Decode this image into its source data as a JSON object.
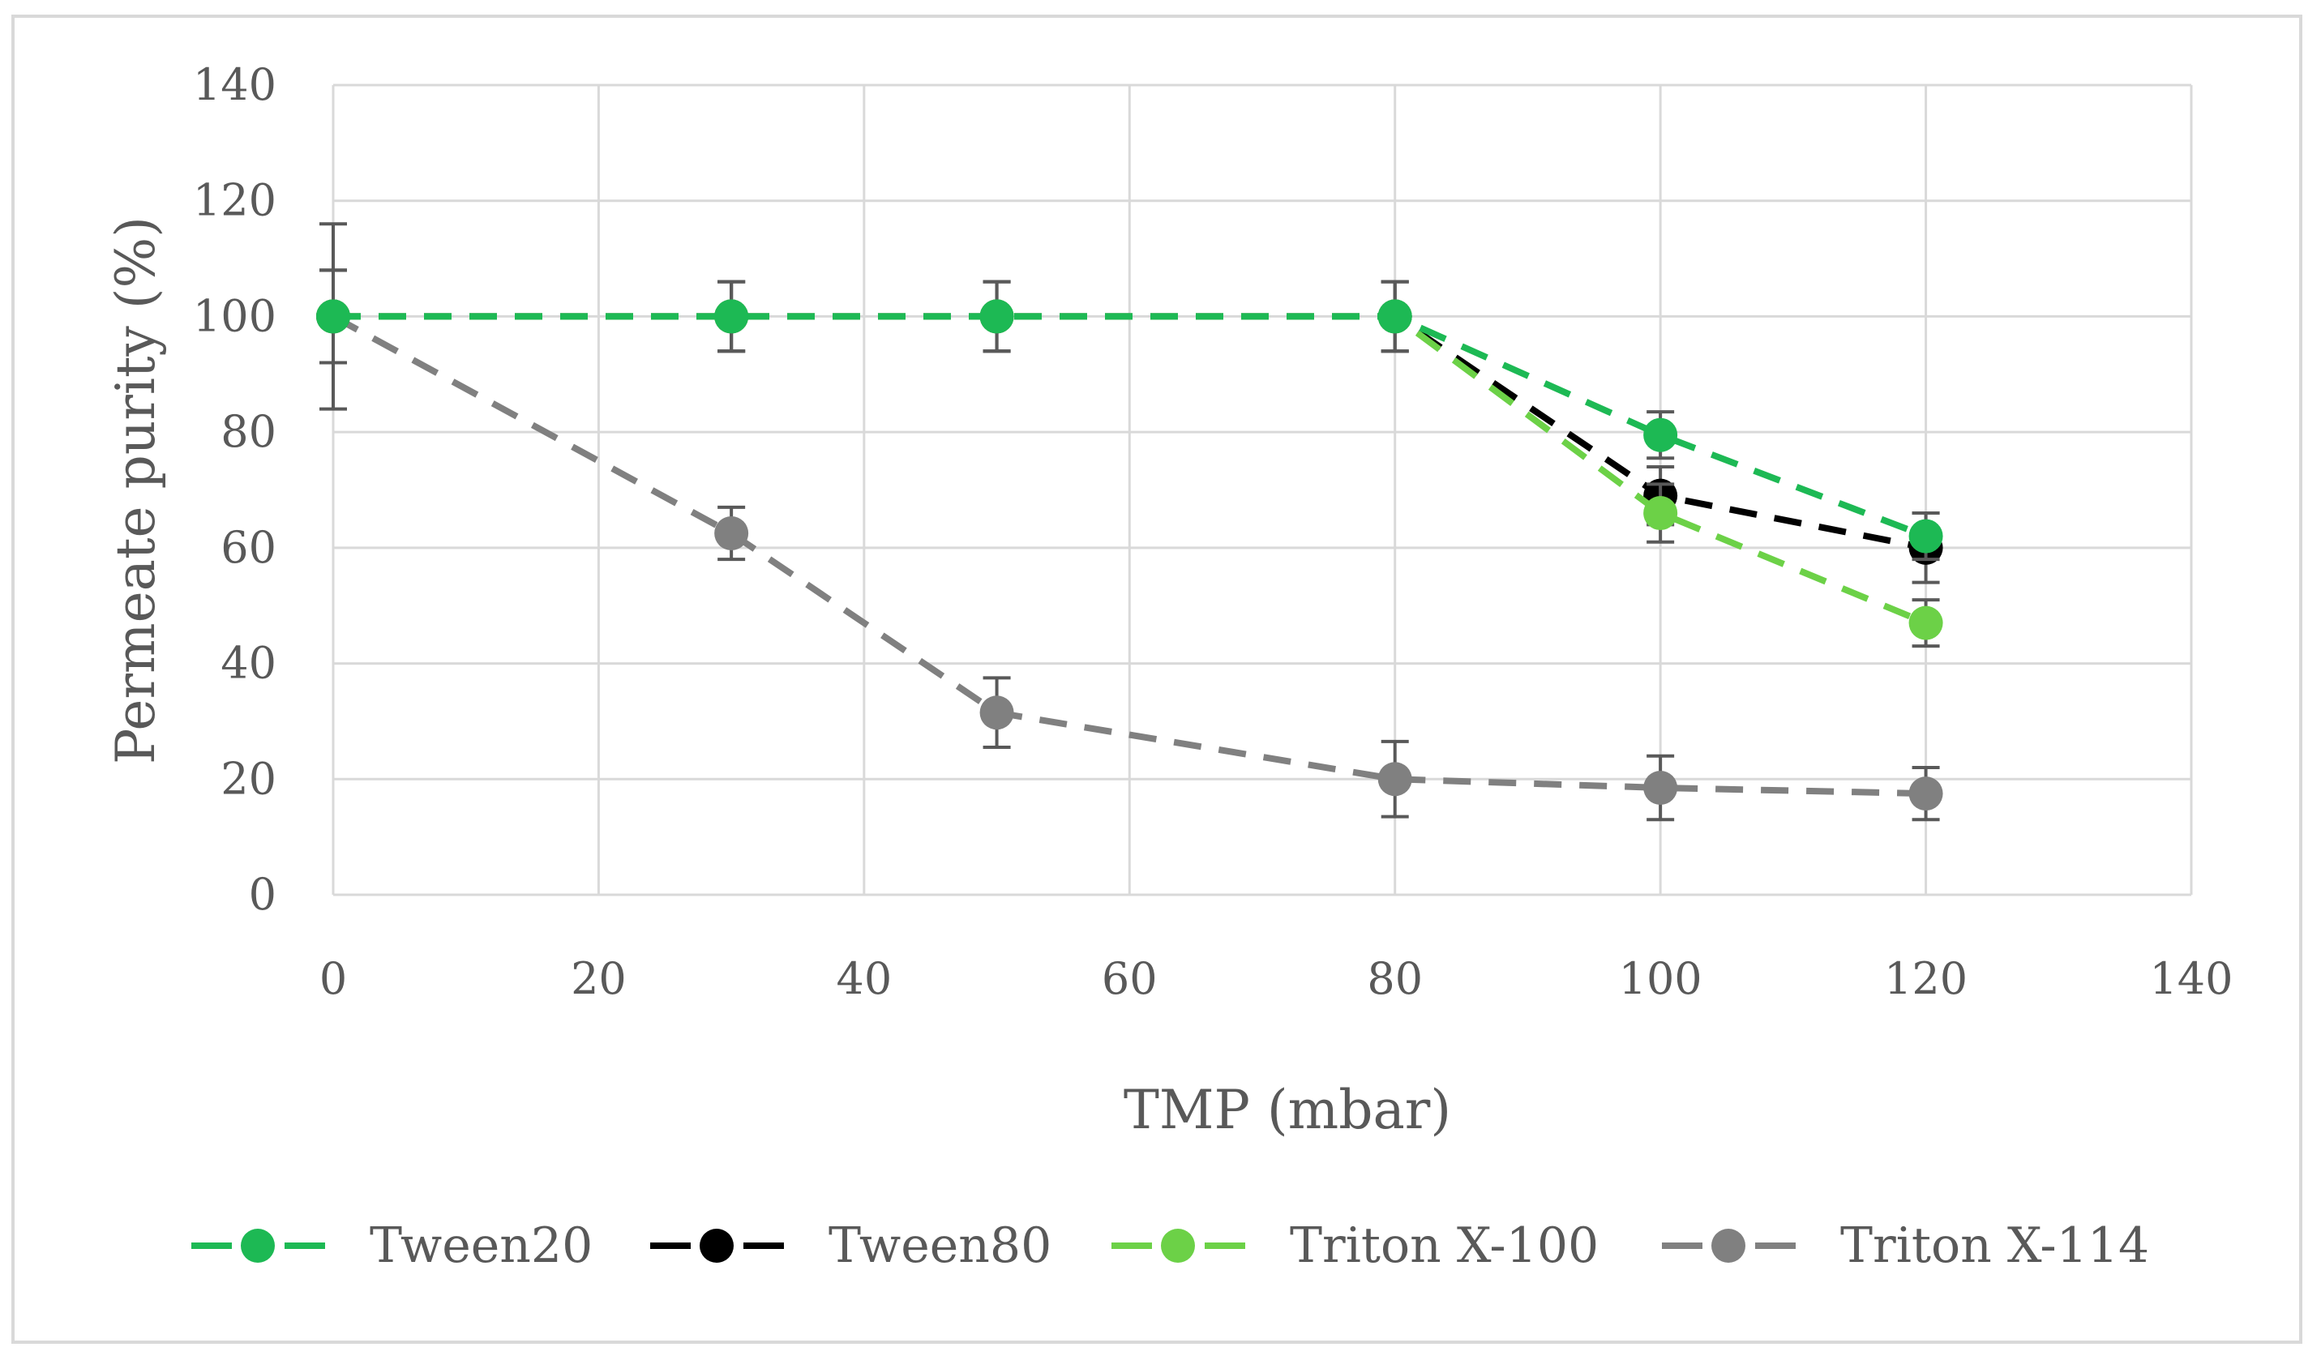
{
  "chart_data": {
    "type": "line",
    "title": "",
    "xlabel": "TMP (mbar)",
    "ylabel": "Permeate purity (%)",
    "xlim": [
      0,
      140
    ],
    "ylim": [
      0,
      140
    ],
    "xticks": [
      0,
      20,
      40,
      60,
      80,
      100,
      120,
      140
    ],
    "yticks": [
      0,
      20,
      40,
      60,
      80,
      100,
      120,
      140
    ],
    "xtick_labels": [
      "0",
      "20",
      "40",
      "60",
      "80",
      "100",
      "120",
      "140"
    ],
    "ytick_labels": [
      "0",
      "20",
      "40",
      "60",
      "80",
      "100",
      "120",
      "140"
    ],
    "grid": true,
    "legend_position": "bottom",
    "x": [
      0,
      30,
      50,
      80,
      100,
      120
    ],
    "series": [
      {
        "name": "Tween20",
        "color": "#1db954",
        "values": [
          100,
          100,
          100,
          100,
          79.5,
          62
        ],
        "errors": [
          8,
          6,
          6,
          6,
          4,
          4
        ]
      },
      {
        "name": "Tween80",
        "color": "#000000",
        "values": [
          100,
          100,
          100,
          100,
          69,
          60
        ],
        "errors": [
          8,
          6,
          6,
          6,
          5,
          6
        ]
      },
      {
        "name": "Triton X-100",
        "color": "#6cd147",
        "values": [
          100,
          100,
          100,
          100,
          66,
          47
        ],
        "errors": [
          8,
          6,
          6,
          6,
          5,
          4
        ]
      },
      {
        "name": "Triton X-114",
        "color": "#808080",
        "values": [
          100,
          62.5,
          31.5,
          20,
          18.5,
          17.5
        ],
        "errors": [
          16,
          4.5,
          6,
          6.5,
          5.5,
          4.5
        ]
      }
    ]
  }
}
